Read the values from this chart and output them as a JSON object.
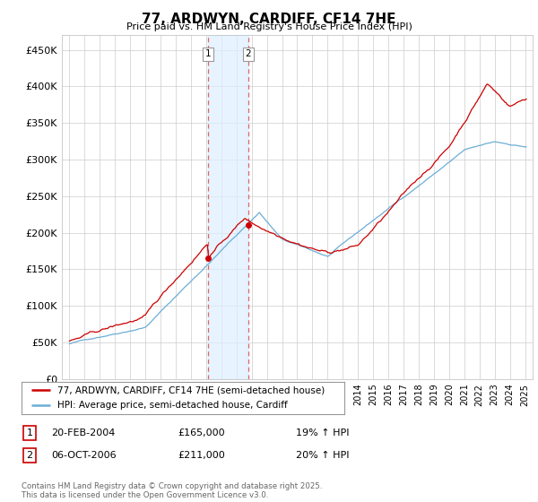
{
  "title": "77, ARDWYN, CARDIFF, CF14 7HE",
  "subtitle": "Price paid vs. HM Land Registry's House Price Index (HPI)",
  "ylabel_ticks": [
    "£0",
    "£50K",
    "£100K",
    "£150K",
    "£200K",
    "£250K",
    "£300K",
    "£350K",
    "£400K",
    "£450K"
  ],
  "ytick_values": [
    0,
    50000,
    100000,
    150000,
    200000,
    250000,
    300000,
    350000,
    400000,
    450000
  ],
  "ylim": [
    0,
    470000
  ],
  "xlim_start": 1994.5,
  "xlim_end": 2025.5,
  "sale1_date": 2004.13,
  "sale1_price": 165000,
  "sale2_date": 2006.76,
  "sale2_price": 211000,
  "line_color_hpi": "#6baed6",
  "line_color_price": "#cc0000",
  "vline_color": "#dd6666",
  "shade_color": "#ddeeff",
  "legend_label1": "77, ARDWYN, CARDIFF, CF14 7HE (semi-detached house)",
  "legend_label2": "HPI: Average price, semi-detached house, Cardiff",
  "table_row1": [
    "1",
    "20-FEB-2004",
    "£165,000",
    "19% ↑ HPI"
  ],
  "table_row2": [
    "2",
    "06-OCT-2006",
    "£211,000",
    "20% ↑ HPI"
  ],
  "footnote": "Contains HM Land Registry data © Crown copyright and database right 2025.\nThis data is licensed under the Open Government Licence v3.0.",
  "background_color": "#ffffff",
  "grid_color": "#cccccc"
}
